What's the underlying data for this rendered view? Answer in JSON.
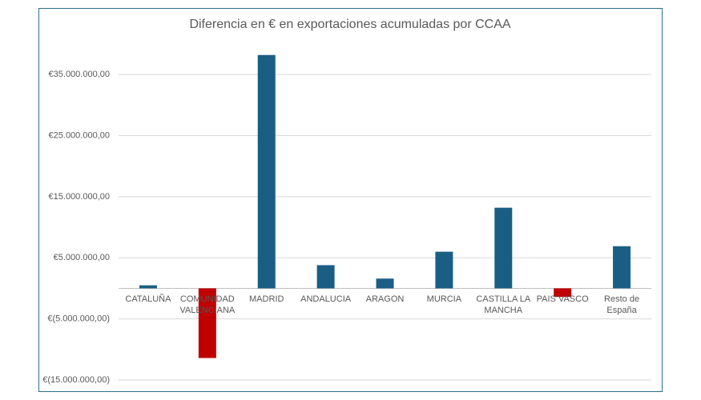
{
  "chart_data": {
    "type": "bar",
    "title": "Diferencia en € en exportaciones acumuladas por CCAA",
    "categories": [
      "CATALUÑA",
      "COMUNIDAD VALENCIANA",
      "MADRID",
      "ANDALUCIA",
      "ARAGON",
      "MURCIA",
      "CASTILLA LA MANCHA",
      "PAIS VASCO",
      "Resto de España"
    ],
    "values": [
      500000,
      -11400000,
      38200000,
      3800000,
      1600000,
      6000000,
      13200000,
      -1400000,
      6900000
    ],
    "color": "#1b5e84",
    "negative_color": "#c00000",
    "ylim": [
      -15000000,
      40000000
    ],
    "yticks": [
      {
        "value": 35000000,
        "label": "€35.000.000,00"
      },
      {
        "value": 25000000,
        "label": "€25.000.000,00"
      },
      {
        "value": 15000000,
        "label": "€15.000.000,00"
      },
      {
        "value": 5000000,
        "label": "€5.000.000,00"
      },
      {
        "value": -5000000,
        "label": "€(5.000.000,00)"
      },
      {
        "value": -15000000,
        "label": "€(15.000.000,00)"
      }
    ],
    "grid": true
  }
}
